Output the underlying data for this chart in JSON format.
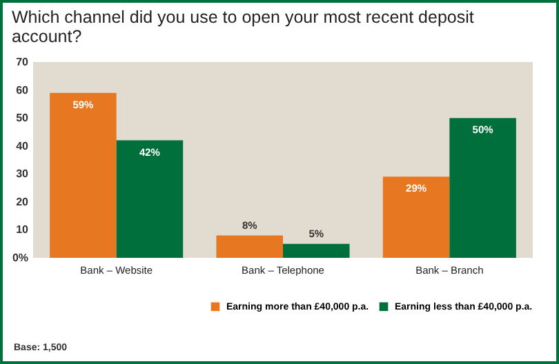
{
  "chart_data": {
    "type": "bar",
    "title": "Which channel did you use to open your most recent deposit account?",
    "categories": [
      "Bank – Website",
      "Bank – Telephone",
      "Bank – Branch"
    ],
    "series": [
      {
        "name": "Earning more than £40,000 p.a.",
        "color": "#e87722",
        "values": [
          59,
          8,
          29
        ],
        "value_labels": [
          "59%",
          "8%",
          "29%"
        ]
      },
      {
        "name": "Earning less than £40,000 p.a.",
        "color": "#006f3c",
        "values": [
          42,
          5,
          50
        ],
        "value_labels": [
          "42%",
          "5%",
          "50%"
        ]
      }
    ],
    "ylim": [
      0,
      70
    ],
    "yticks": [
      {
        "value": 0,
        "label": "0%"
      },
      10,
      20,
      30,
      40,
      50,
      60,
      70
    ],
    "grid": false,
    "legend": "bottom right",
    "annotations": [
      "Base: 1,500"
    ]
  }
}
